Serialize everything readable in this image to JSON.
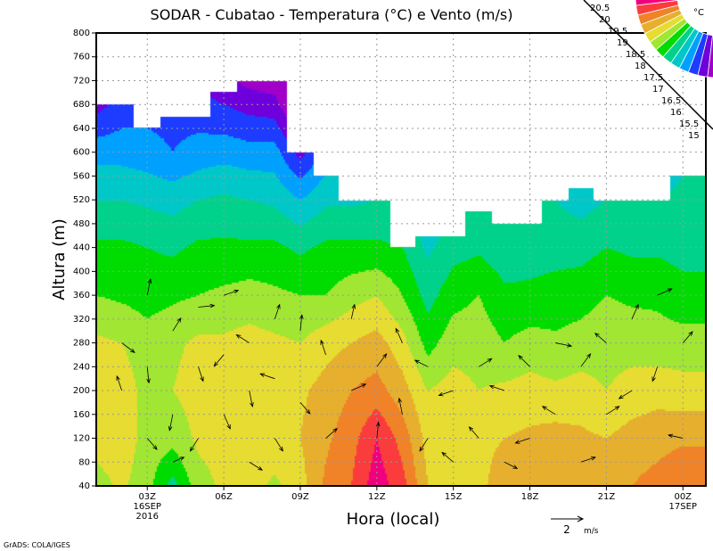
{
  "chart_data": {
    "type": "heatmap",
    "title": "SODAR - Cubatao - Temperatura (°C) e Vento (m/s)",
    "xlabel": "Hora (local)",
    "ylabel": "Altura (m)",
    "xlim": [
      1.0,
      24.9
    ],
    "ylim": [
      40,
      800
    ],
    "y_ticks": [
      40,
      80,
      120,
      160,
      200,
      240,
      280,
      320,
      360,
      400,
      440,
      480,
      520,
      560,
      600,
      640,
      680,
      720,
      760,
      800
    ],
    "x_ticks": [
      {
        "hour": 3,
        "label": "03Z",
        "sub1": "16SEP",
        "sub2": "2016"
      },
      {
        "hour": 6,
        "label": "06Z"
      },
      {
        "hour": 9,
        "label": "09Z"
      },
      {
        "hour": 12,
        "label": "12Z"
      },
      {
        "hour": 15,
        "label": "15Z"
      },
      {
        "hour": 18,
        "label": "18Z"
      },
      {
        "hour": 21,
        "label": "21Z"
      },
      {
        "hour": 24,
        "label": "00Z",
        "sub1": "17SEP"
      }
    ],
    "grid": true,
    "colorbar": {
      "unit": "°C",
      "levels": [
        "20.5",
        "20",
        "19.5",
        "19",
        "18.5",
        "18",
        "17.5",
        "17",
        "16.5",
        "16",
        "15.5",
        "15"
      ],
      "thresholds": [
        20.5,
        20,
        19.5,
        19,
        18.5,
        18,
        17.5,
        17,
        16.5,
        16,
        15.5,
        15
      ],
      "colors": [
        "#f0007f",
        "#fa3c3c",
        "#f08228",
        "#e6af2d",
        "#e6dc32",
        "#a0e632",
        "#00dc00",
        "#00d28c",
        "#00c8c8",
        "#00a0ff",
        "#1e3cff",
        "#6e00dc",
        "#a000c8"
      ]
    },
    "levels_m": [
      40,
      120,
      200,
      280,
      360,
      440,
      520,
      600,
      680
    ],
    "columns": [
      {
        "hour": 1,
        "top": 680,
        "t": [
          18.3,
          18.7,
          18.7,
          18.6,
          18.0,
          17.6,
          17.0,
          16.3,
          15.3
        ]
      },
      {
        "hour": 2,
        "top": 680,
        "t": [
          18.6,
          18.8,
          18.8,
          18.5,
          17.9,
          17.6,
          17.0,
          16.3,
          15.7
        ]
      },
      {
        "hour": 3,
        "top": 640,
        "t": [
          18.2,
          18.3,
          18.3,
          18.2,
          17.8,
          17.5,
          16.9,
          16.2,
          15.8
        ]
      },
      {
        "hour": 4,
        "top": 660,
        "t": [
          17.3,
          18.2,
          18.5,
          18.4,
          17.9,
          17.4,
          16.8,
          16.0,
          15.8
        ]
      },
      {
        "hour": 5,
        "top": 660,
        "t": [
          18.3,
          18.6,
          18.7,
          18.6,
          18.0,
          17.6,
          17.0,
          16.2,
          15.7
        ]
      },
      {
        "hour": 6,
        "top": 700,
        "t": [
          18.6,
          18.7,
          18.8,
          18.6,
          18.1,
          17.6,
          17.1,
          16.3,
          15.5
        ]
      },
      {
        "hour": 7,
        "top": 720,
        "t": [
          18.7,
          18.9,
          18.9,
          18.7,
          18.2,
          17.6,
          17.0,
          16.2,
          15.3
        ]
      },
      {
        "hour": 8,
        "top": 720,
        "t": [
          18.4,
          18.8,
          18.8,
          18.6,
          18.1,
          17.6,
          16.9,
          16.2,
          15.2
        ]
      },
      {
        "hour": 9,
        "top": 600,
        "t": [
          18.8,
          19.0,
          18.9,
          18.5,
          18.0,
          17.4,
          16.5,
          15.3
        ]
      },
      {
        "hour": 10,
        "top": 560,
        "t": [
          19.6,
          19.4,
          19.2,
          18.8,
          18.0,
          17.6,
          16.9
        ]
      },
      {
        "hour": 11,
        "top": 520,
        "t": [
          20.0,
          19.8,
          19.5,
          19.0,
          18.3,
          17.6,
          16.9
        ]
      },
      {
        "hour": 12,
        "top": 520,
        "t": [
          20.8,
          20.5,
          19.7,
          19.2,
          18.5,
          17.6,
          17.0
        ]
      },
      {
        "hour": 13,
        "top": 440,
        "t": [
          20.2,
          19.8,
          19.2,
          18.7,
          18.0,
          17.5
        ]
      },
      {
        "hour": 14,
        "top": 460,
        "t": [
          19.0,
          18.8,
          18.5,
          17.8,
          17.3,
          16.9
        ]
      },
      {
        "hour": 15,
        "top": 460,
        "t": [
          18.7,
          18.8,
          18.7,
          18.3,
          17.8,
          17.3
        ]
      },
      {
        "hour": 16,
        "top": 500,
        "t": [
          18.9,
          18.9,
          18.5,
          18.3,
          18.0,
          17.4,
          17.0
        ]
      },
      {
        "hour": 17,
        "top": 480,
        "t": [
          19.2,
          19.0,
          18.6,
          18.0,
          17.6,
          17.2
        ]
      },
      {
        "hour": 18,
        "top": 480,
        "t": [
          19.4,
          19.1,
          18.7,
          18.2,
          17.6,
          17.3
        ]
      },
      {
        "hour": 19,
        "top": 520,
        "t": [
          19.5,
          19.2,
          18.6,
          18.1,
          17.7,
          17.3,
          17.0
        ]
      },
      {
        "hour": 20,
        "top": 540,
        "t": [
          19.4,
          19.1,
          18.7,
          18.2,
          17.8,
          17.3,
          16.8
        ]
      },
      {
        "hour": 21,
        "top": 520,
        "t": [
          19.4,
          19.0,
          18.5,
          18.3,
          18.0,
          17.5,
          17.0
        ]
      },
      {
        "hour": 22,
        "top": 520,
        "t": [
          19.5,
          19.2,
          18.7,
          18.3,
          17.9,
          17.4,
          17.0
        ]
      },
      {
        "hour": 23,
        "top": 520,
        "t": [
          19.7,
          19.3,
          18.8,
          18.2,
          17.9,
          17.4,
          17.0
        ]
      },
      {
        "hour": 24,
        "top": 560,
        "t": [
          20.0,
          19.4,
          18.7,
          18.2,
          17.7,
          17.3,
          17.1
        ]
      },
      {
        "hour": 24.9,
        "top": 560,
        "t": [
          20.0,
          19.4,
          18.7,
          18.2,
          17.7,
          17.3,
          17.1
        ]
      }
    ],
    "wind_ref": {
      "speed": 2,
      "label": "2",
      "unit": "m/s"
    },
    "wind": [
      [
        2,
        280,
        0.8,
        -0.6
      ],
      [
        2,
        200,
        -0.3,
        0.9
      ],
      [
        3,
        360,
        0.2,
        1.0
      ],
      [
        3,
        240,
        0.1,
        -1.0
      ],
      [
        3,
        120,
        0.6,
        -0.7
      ],
      [
        4,
        300,
        0.5,
        0.8
      ],
      [
        4,
        160,
        -0.2,
        -1.0
      ],
      [
        4,
        80,
        0.7,
        0.3
      ],
      [
        5,
        340,
        1.0,
        0.1
      ],
      [
        5,
        240,
        0.3,
        -0.9
      ],
      [
        5,
        120,
        -0.5,
        -0.8
      ],
      [
        6,
        360,
        0.9,
        0.3
      ],
      [
        6,
        260,
        -0.6,
        -0.7
      ],
      [
        6,
        160,
        0.4,
        -0.9
      ],
      [
        7,
        280,
        -0.8,
        0.5
      ],
      [
        7,
        200,
        0.2,
        -1.0
      ],
      [
        7,
        80,
        0.8,
        -0.5
      ],
      [
        8,
        320,
        0.3,
        0.9
      ],
      [
        8,
        220,
        -0.9,
        0.3
      ],
      [
        8,
        120,
        0.5,
        -0.8
      ],
      [
        9,
        300,
        0.1,
        1.0
      ],
      [
        9,
        180,
        0.6,
        -0.7
      ],
      [
        10,
        260,
        -0.3,
        0.9
      ],
      [
        10,
        120,
        0.7,
        0.6
      ],
      [
        11,
        320,
        0.2,
        0.9
      ],
      [
        11,
        200,
        0.9,
        0.4
      ],
      [
        12,
        240,
        0.6,
        0.8
      ],
      [
        12,
        120,
        0.1,
        1.0
      ],
      [
        13,
        280,
        -0.4,
        0.9
      ],
      [
        13,
        160,
        -0.2,
        1.0
      ],
      [
        14,
        240,
        -0.8,
        0.4
      ],
      [
        14,
        120,
        -0.5,
        -0.8
      ],
      [
        15,
        200,
        -0.9,
        -0.3
      ],
      [
        15,
        80,
        -0.7,
        0.6
      ],
      [
        16,
        240,
        0.8,
        0.5
      ],
      [
        16,
        120,
        -0.6,
        0.7
      ],
      [
        17,
        200,
        -0.9,
        0.3
      ],
      [
        17,
        80,
        0.8,
        -0.4
      ],
      [
        18,
        240,
        -0.7,
        0.7
      ],
      [
        18,
        120,
        -0.9,
        -0.3
      ],
      [
        19,
        280,
        1.0,
        -0.2
      ],
      [
        19,
        160,
        -0.8,
        0.5
      ],
      [
        20,
        240,
        0.6,
        0.8
      ],
      [
        20,
        80,
        0.9,
        0.3
      ],
      [
        21,
        280,
        -0.7,
        0.6
      ],
      [
        21,
        160,
        0.8,
        0.5
      ],
      [
        22,
        320,
        0.4,
        0.9
      ],
      [
        22,
        200,
        -0.8,
        -0.5
      ],
      [
        23,
        360,
        0.9,
        0.4
      ],
      [
        23,
        240,
        -0.3,
        -0.9
      ],
      [
        24,
        280,
        0.6,
        0.7
      ],
      [
        24,
        120,
        -0.9,
        0.2
      ]
    ]
  },
  "footer": {
    "credit": "GrADS: COLA/IGES"
  }
}
